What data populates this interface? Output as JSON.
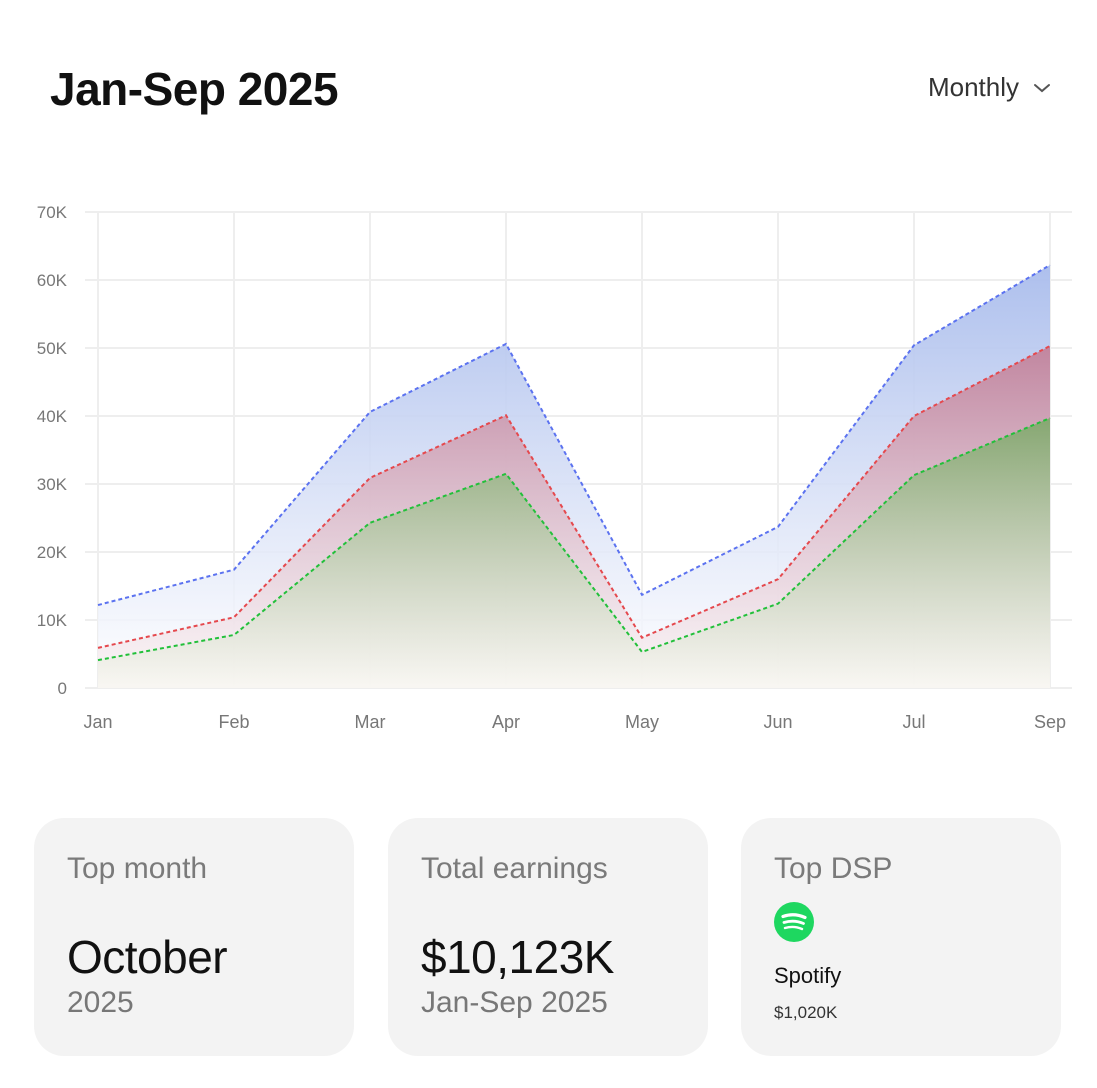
{
  "header": {
    "title": "Jan-Sep 2025",
    "period_select": "Monthly",
    "period_icon": "chevron-down-icon"
  },
  "chart_data": {
    "type": "area",
    "categories": [
      "Jan",
      "Feb",
      "Mar",
      "Apr",
      "May",
      "Jun",
      "Jul",
      "Sep"
    ],
    "ylim": [
      0,
      70000
    ],
    "yticks": [
      "0",
      "10K",
      "20K",
      "30K",
      "40K",
      "50K",
      "60K",
      "70K"
    ],
    "grid": true,
    "series": [
      {
        "color": "#5b72f0",
        "fill": "#a9bcec",
        "values": [
          12200,
          17400,
          40600,
          50600,
          13700,
          23700,
          50400,
          62200
        ]
      },
      {
        "color": "#e5484d",
        "fill": "#c27e96",
        "values": [
          5900,
          10400,
          30900,
          40100,
          7400,
          16000,
          40000,
          50300
        ]
      },
      {
        "color": "#22c03a",
        "fill": "#7ea86a",
        "values": [
          4100,
          7800,
          24300,
          31500,
          5300,
          12400,
          31300,
          39700
        ]
      }
    ]
  },
  "cards": [
    {
      "label": "Top month",
      "value": "October",
      "sub": "2025"
    },
    {
      "label": "Total earnings",
      "value": "$10,123K",
      "sub": "Jan-Sep 2025"
    },
    {
      "label": "Top DSP",
      "icon": "spotify-icon",
      "name": "Spotify",
      "amount": "$1,020K",
      "brand_color": "#1ed760"
    }
  ]
}
